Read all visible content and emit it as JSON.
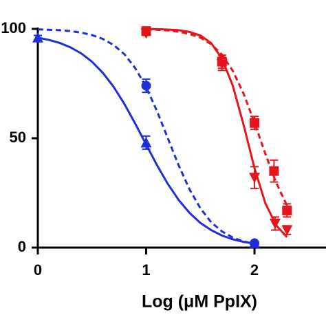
{
  "chart_data": {
    "type": "dose-response",
    "xlabel": "Log (μM PpIX)",
    "xlim": [
      0,
      2.66
    ],
    "xticks": [
      0,
      1,
      2
    ],
    "ylim": [
      0,
      100
    ],
    "yticks": [
      0,
      50,
      100
    ],
    "series": [
      {
        "color": "#1f2fd6",
        "marker": "triangle",
        "dash": false,
        "x": [
          0,
          1,
          2
        ],
        "values": [
          96,
          48,
          2
        ],
        "errors": [
          1,
          3,
          0.5
        ],
        "fit": {
          "x": [
            0,
            0.1,
            0.2,
            0.3,
            0.4,
            0.5,
            0.6,
            0.7,
            0.8,
            0.9,
            1.0,
            1.1,
            1.2,
            1.3,
            1.4,
            1.5,
            1.6,
            1.7,
            1.8,
            1.9,
            2.0
          ],
          "values": [
            96.0,
            95.0,
            93.6,
            91.6,
            88.8,
            85.0,
            79.9,
            73.5,
            65.6,
            56.6,
            47.1,
            37.7,
            29.1,
            21.8,
            15.9,
            11.3,
            8.0,
            5.5,
            3.8,
            2.6,
            1.8
          ]
        }
      },
      {
        "color": "#1f2fd6",
        "marker": "circle",
        "dash": true,
        "x": [
          1,
          2
        ],
        "values": [
          74,
          2
        ],
        "errors": [
          3,
          0.5
        ],
        "fit": {
          "x": [
            0,
            0.1,
            0.2,
            0.3,
            0.4,
            0.5,
            0.6,
            0.7,
            0.8,
            0.9,
            1.0,
            1.1,
            1.2,
            1.3,
            1.4,
            1.5,
            1.6,
            1.7,
            1.8,
            1.9,
            2.0
          ],
          "values": [
            99.8,
            99.6,
            99.4,
            99.0,
            98.3,
            97.2,
            95.4,
            92.6,
            88.4,
            82.0,
            73.4,
            62.4,
            50,
            37.6,
            26.7,
            18.0,
            11.6,
            7.4,
            4.6,
            2.8,
            1.7
          ]
        }
      },
      {
        "color": "#e8141b",
        "marker": "square",
        "dash": true,
        "x": [
          1,
          1.7,
          2,
          2.18,
          2.3
        ],
        "values": [
          99,
          85,
          57,
          35,
          17
        ],
        "errors": [
          1.5,
          3,
          3,
          5,
          3
        ],
        "fit": {
          "x": [
            1.0,
            1.1,
            1.2,
            1.3,
            1.4,
            1.5,
            1.6,
            1.7,
            1.8,
            1.9,
            2.0,
            2.1,
            2.2,
            2.3
          ],
          "values": [
            99.8,
            99.6,
            99.3,
            98.7,
            97.7,
            96.0,
            93.0,
            88.2,
            80.8,
            70.3,
            57.1,
            42.9,
            29.7,
            19.2
          ]
        }
      },
      {
        "color": "#e8141b",
        "marker": "triangle-down",
        "dash": false,
        "x": [
          1,
          1.7,
          2,
          2.19,
          2.3
        ],
        "values": [
          98,
          84,
          32,
          11,
          8
        ],
        "errors": [
          1,
          3,
          5,
          3,
          2
        ],
        "fit": {
          "x": [
            1.0,
            1.1,
            1.2,
            1.3,
            1.4,
            1.5,
            1.6,
            1.7,
            1.8,
            1.9,
            2.0,
            2.1,
            2.2,
            2.3
          ],
          "values": [
            99.9,
            99.9,
            99.7,
            99.4,
            98.6,
            97.0,
            93.5,
            86.4,
            74.0,
            56.0,
            36.3,
            20.3,
            10.2,
            4.8
          ]
        }
      }
    ]
  }
}
